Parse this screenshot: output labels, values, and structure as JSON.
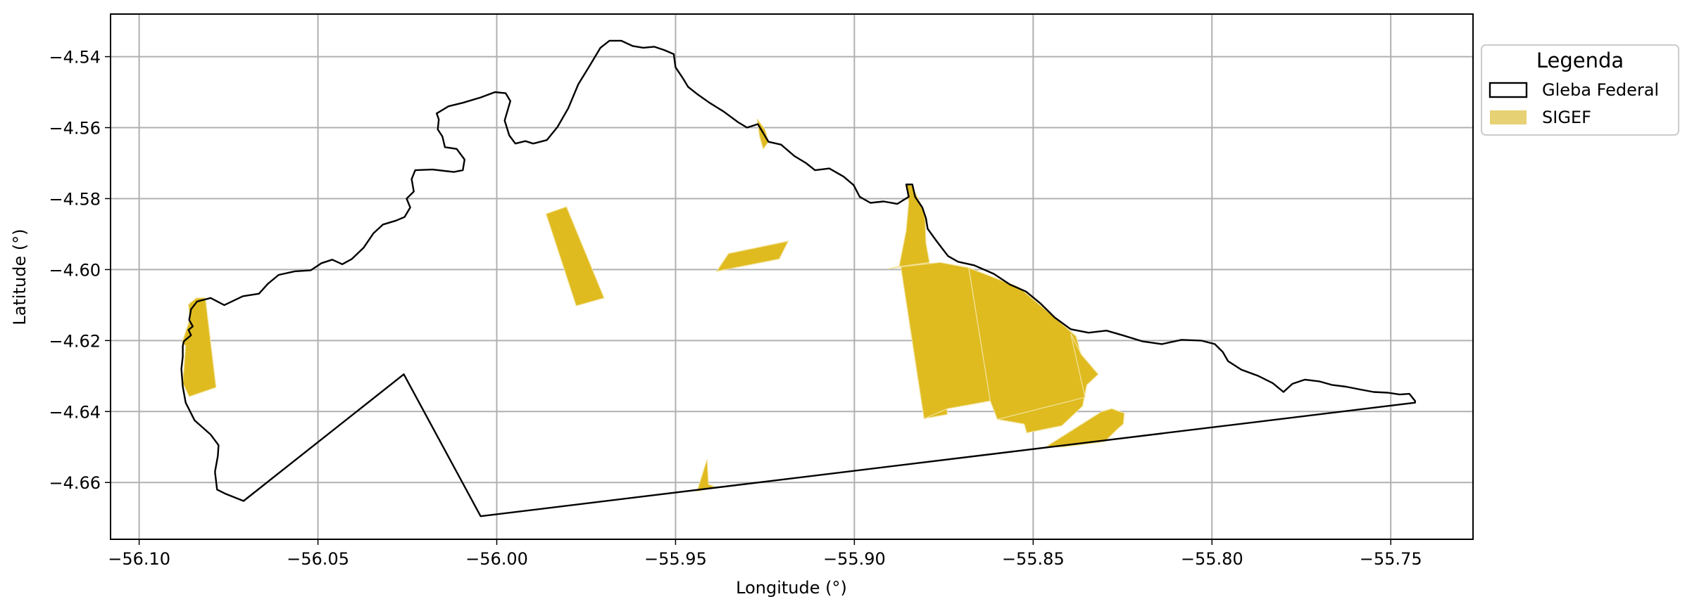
{
  "map": {
    "xlabel": "Longitude (°)",
    "ylabel": "Latitude (°)",
    "xlim": [
      -56.108,
      -55.727
    ],
    "ylim": [
      -4.676,
      -4.528
    ],
    "xticks": [
      -56.1,
      -56.05,
      -56.0,
      -55.95,
      -55.9,
      -55.85,
      -55.8,
      -55.75
    ],
    "xtick_labels": [
      "−56.10",
      "−56.05",
      "−56.00",
      "−55.95",
      "−55.90",
      "−55.85",
      "−55.80",
      "−55.75"
    ],
    "yticks": [
      -4.54,
      -4.56,
      -4.58,
      -4.6,
      -4.62,
      -4.64,
      -4.66
    ],
    "ytick_labels": [
      "−4.54",
      "−4.56",
      "−4.58",
      "−4.60",
      "−4.62",
      "−4.64",
      "−4.66"
    ],
    "grid": true
  },
  "legend": {
    "title": "Legenda",
    "placement": "outside-top-right",
    "items": [
      {
        "label": "Gleba Federal",
        "style": "outline",
        "color": "#000000"
      },
      {
        "label": "SIGEF",
        "style": "fill",
        "color": "#e6d174"
      }
    ]
  },
  "colors": {
    "sigef_fill": "#dfbb20",
    "gleba_stroke": "#000000",
    "grid": "#b0b0b0"
  },
  "layers": {
    "gleba_federal": [
      [
        -56.0875,
        -4.6202
      ],
      [
        -56.0855,
        -4.6185
      ],
      [
        -56.0862,
        -4.617
      ],
      [
        -56.085,
        -4.616
      ],
      [
        -56.086,
        -4.6142
      ],
      [
        -56.0855,
        -4.6112
      ],
      [
        -56.0838,
        -4.609
      ],
      [
        -56.08,
        -4.608
      ],
      [
        -56.0762,
        -4.61
      ],
      [
        -56.071,
        -4.6075
      ],
      [
        -56.0665,
        -4.6068
      ],
      [
        -56.064,
        -4.604
      ],
      [
        -56.061,
        -4.6015
      ],
      [
        -56.0565,
        -4.6005
      ],
      [
        -56.052,
        -4.6002
      ],
      [
        -56.049,
        -4.5982
      ],
      [
        -56.046,
        -4.5972
      ],
      [
        -56.0432,
        -4.5985
      ],
      [
        -56.0405,
        -4.597
      ],
      [
        -56.0372,
        -4.5938
      ],
      [
        -56.0345,
        -4.5898
      ],
      [
        -56.0318,
        -4.5873
      ],
      [
        -56.0282,
        -4.5862
      ],
      [
        -56.0258,
        -4.5852
      ],
      [
        -56.0242,
        -4.5825
      ],
      [
        -56.0252,
        -4.58
      ],
      [
        -56.0232,
        -4.578
      ],
      [
        -56.0238,
        -4.5745
      ],
      [
        -56.0228,
        -4.572
      ],
      [
        -56.018,
        -4.5718
      ],
      [
        -56.012,
        -4.5725
      ],
      [
        -56.0095,
        -4.572
      ],
      [
        -56.009,
        -4.569
      ],
      [
        -56.0112,
        -4.566
      ],
      [
        -56.0145,
        -4.5655
      ],
      [
        -56.0152,
        -4.5625
      ],
      [
        -56.0165,
        -4.5605
      ],
      [
        -56.0162,
        -4.5577
      ],
      [
        -56.0168,
        -4.556
      ],
      [
        -56.0135,
        -4.554
      ],
      [
        -56.0095,
        -4.553
      ],
      [
        -56.0045,
        -4.5515
      ],
      [
        -56.0005,
        -4.55
      ],
      [
        -55.9975,
        -4.5503
      ],
      [
        -55.9962,
        -4.5525
      ],
      [
        -55.9978,
        -4.558
      ],
      [
        -55.9965,
        -4.5622
      ],
      [
        -55.9948,
        -4.5645
      ],
      [
        -55.992,
        -4.5638
      ],
      [
        -55.9898,
        -4.5645
      ],
      [
        -55.986,
        -4.5635
      ],
      [
        -55.983,
        -4.5598
      ],
      [
        -55.98,
        -4.5545
      ],
      [
        -55.9772,
        -4.5478
      ],
      [
        -55.974,
        -4.5425
      ],
      [
        -55.971,
        -4.5375
      ],
      [
        -55.9685,
        -4.5355
      ],
      [
        -55.9652,
        -4.5355
      ],
      [
        -55.962,
        -4.537
      ],
      [
        -55.959,
        -4.5375
      ],
      [
        -55.956,
        -4.5372
      ],
      [
        -55.953,
        -4.5382
      ],
      [
        -55.9505,
        -4.5393
      ],
      [
        -55.95,
        -4.543
      ],
      [
        -55.948,
        -4.546
      ],
      [
        -55.9465,
        -4.5485
      ],
      [
        -55.944,
        -4.5505
      ],
      [
        -55.9405,
        -4.553
      ],
      [
        -55.9365,
        -4.5555
      ],
      [
        -55.9325,
        -4.5585
      ],
      [
        -55.93,
        -4.56
      ],
      [
        -55.927,
        -4.559
      ],
      [
        -55.9252,
        -4.562
      ],
      [
        -55.924,
        -4.564
      ],
      [
        -55.9205,
        -4.5648
      ],
      [
        -55.9168,
        -4.568
      ],
      [
        -55.9135,
        -4.57
      ],
      [
        -55.911,
        -4.572
      ],
      [
        -55.907,
        -4.5715
      ],
      [
        -55.903,
        -4.5738
      ],
      [
        -55.9002,
        -4.5762
      ],
      [
        -55.8985,
        -4.5795
      ],
      [
        -55.8955,
        -4.5812
      ],
      [
        -55.8918,
        -4.5808
      ],
      [
        -55.888,
        -4.5815
      ],
      [
        -55.8848,
        -4.5795
      ],
      [
        -55.8855,
        -4.576
      ],
      [
        -55.8838,
        -4.576
      ],
      [
        -55.883,
        -4.5795
      ],
      [
        -55.881,
        -4.5825
      ],
      [
        -55.88,
        -4.5855
      ],
      [
        -55.8795,
        -4.5885
      ],
      [
        -55.877,
        -4.592
      ],
      [
        -55.8738,
        -4.5962
      ],
      [
        -55.871,
        -4.5978
      ],
      [
        -55.8665,
        -4.5988
      ],
      [
        -55.861,
        -4.6012
      ],
      [
        -55.8565,
        -4.6042
      ],
      [
        -55.852,
        -4.6062
      ],
      [
        -55.848,
        -4.6095
      ],
      [
        -55.844,
        -4.6135
      ],
      [
        -55.8395,
        -4.6168
      ],
      [
        -55.8345,
        -4.6178
      ],
      [
        -55.8295,
        -4.6172
      ],
      [
        -55.825,
        -4.6185
      ],
      [
        -55.8195,
        -4.6202
      ],
      [
        -55.814,
        -4.621
      ],
      [
        -55.8085,
        -4.6198
      ],
      [
        -55.803,
        -4.62
      ],
      [
        -55.7992,
        -4.621
      ],
      [
        -55.797,
        -4.6232
      ],
      [
        -55.7955,
        -4.6258
      ],
      [
        -55.7918,
        -4.6282
      ],
      [
        -55.787,
        -4.63
      ],
      [
        -55.783,
        -4.632
      ],
      [
        -55.78,
        -4.6345
      ],
      [
        -55.7775,
        -4.6322
      ],
      [
        -55.774,
        -4.631
      ],
      [
        -55.77,
        -4.6315
      ],
      [
        -55.7665,
        -4.6325
      ],
      [
        -55.7625,
        -4.633
      ],
      [
        -55.7585,
        -4.6338
      ],
      [
        -55.7548,
        -4.6345
      ],
      [
        -55.7508,
        -4.6347
      ],
      [
        -55.7475,
        -4.6352
      ],
      [
        -55.7448,
        -4.635
      ],
      [
        -55.7432,
        -4.637
      ],
      [
        -55.7432,
        -4.6375
      ],
      [
        -56.0045,
        -4.6695
      ],
      [
        -56.026,
        -4.6295
      ],
      [
        -56.0708,
        -4.6652
      ],
      [
        -56.0758,
        -4.6632
      ],
      [
        -56.0782,
        -4.662
      ],
      [
        -56.0788,
        -4.657
      ],
      [
        -56.078,
        -4.6525
      ],
      [
        -56.0778,
        -4.6495
      ],
      [
        -56.08,
        -4.6465
      ],
      [
        -56.0845,
        -4.6425
      ],
      [
        -56.087,
        -4.6375
      ],
      [
        -56.0878,
        -4.633
      ],
      [
        -56.0882,
        -4.628
      ],
      [
        -56.0878,
        -4.6245
      ],
      [
        -56.0878,
        -4.6215
      ],
      [
        -56.0875,
        -4.6202
      ]
    ],
    "sigef_parcels": [
      [
        [
          -56.0862,
          -4.6098
        ],
        [
          -56.084,
          -4.608
        ],
        [
          -56.0815,
          -4.608
        ],
        [
          -56.0785,
          -4.6332
        ],
        [
          -56.086,
          -4.6358
        ],
        [
          -56.0878,
          -4.632
        ],
        [
          -56.087,
          -4.6215
        ],
        [
          -56.088,
          -4.6205
        ],
        [
          -56.0858,
          -4.614
        ]
      ],
      [
        [
          -55.9862,
          -4.5843
        ],
        [
          -55.9805,
          -4.5823
        ],
        [
          -55.97,
          -4.608
        ],
        [
          -55.9778,
          -4.6102
        ]
      ],
      [
        [
          -55.9385,
          -4.6005
        ],
        [
          -55.9352,
          -4.5955
        ],
        [
          -55.9185,
          -4.592
        ],
        [
          -55.921,
          -4.597
        ]
      ],
      [
        [
          -55.9272,
          -4.5575
        ],
        [
          -55.925,
          -4.5605
        ],
        [
          -55.924,
          -4.564
        ],
        [
          -55.9255,
          -4.566
        ],
        [
          -55.9265,
          -4.5625
        ]
      ],
      [
        [
          -55.8855,
          -4.576
        ],
        [
          -55.884,
          -4.5762
        ],
        [
          -55.881,
          -4.5825
        ],
        [
          -55.8802,
          -4.5858
        ],
        [
          -55.88,
          -4.5925
        ],
        [
          -55.879,
          -4.598
        ],
        [
          -55.8875,
          -4.5992
        ],
        [
          -55.8855,
          -4.589
        ],
        [
          -55.8848,
          -4.581
        ]
      ],
      [
        [
          -55.8905,
          -4.5998
        ],
        [
          -55.887,
          -4.599
        ],
        [
          -55.8805,
          -4.642
        ],
        [
          -55.874,
          -4.6408
        ],
        [
          -55.876,
          -4.6175
        ],
        [
          -55.879,
          -4.598
        ]
      ],
      [
        [
          -55.887,
          -4.5992
        ],
        [
          -55.876,
          -4.598
        ],
        [
          -55.868,
          -4.5995
        ],
        [
          -55.862,
          -4.637
        ],
        [
          -55.874,
          -4.6392
        ],
        [
          -55.8805,
          -4.642
        ]
      ],
      [
        [
          -55.868,
          -4.5995
        ],
        [
          -55.854,
          -4.605
        ],
        [
          -55.844,
          -4.6135
        ],
        [
          -55.838,
          -4.6188
        ],
        [
          -55.836,
          -4.6265
        ],
        [
          -55.8355,
          -4.636
        ],
        [
          -55.843,
          -4.6395
        ],
        [
          -55.8525,
          -4.6435
        ],
        [
          -55.86,
          -4.6422
        ],
        [
          -55.862,
          -4.637
        ]
      ],
      [
        [
          -55.86,
          -4.6422
        ],
        [
          -55.8525,
          -4.6435
        ],
        [
          -55.8518,
          -4.646
        ],
        [
          -55.842,
          -4.644
        ],
        [
          -55.8362,
          -4.6385
        ],
        [
          -55.835,
          -4.6325
        ],
        [
          -55.8318,
          -4.6295
        ],
        [
          -55.8365,
          -4.624
        ],
        [
          -55.8395,
          -4.618
        ],
        [
          -55.8355,
          -4.636
        ]
      ],
      [
        [
          -55.8462,
          -4.6498
        ],
        [
          -55.8308,
          -4.64
        ],
        [
          -55.828,
          -4.6392
        ],
        [
          -55.8245,
          -4.6405
        ],
        [
          -55.8248,
          -4.6435
        ],
        [
          -55.8265,
          -4.645
        ],
        [
          -55.83,
          -4.6485
        ],
        [
          -55.842,
          -4.65
        ]
      ],
      [
        [
          -55.944,
          -4.6625
        ],
        [
          -55.9412,
          -4.6535
        ],
        [
          -55.9408,
          -4.6605
        ],
        [
          -55.939,
          -4.6612
        ]
      ]
    ]
  }
}
